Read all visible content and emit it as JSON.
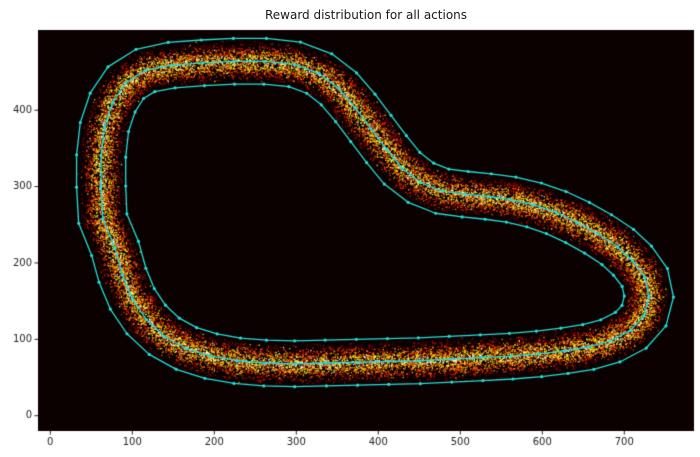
{
  "chart_data": {
    "type": "scatter",
    "title": "Reward distribution for all actions",
    "xlim": [
      -15,
      785
    ],
    "ylim": [
      -20,
      505
    ],
    "x_ticks": [
      0,
      100,
      200,
      300,
      400,
      500,
      600,
      700
    ],
    "y_ticks": [
      0,
      100,
      200,
      300,
      400
    ],
    "figure_bg": "#ffffff",
    "plot_bg": "#0b0100",
    "tick_color": "#262626",
    "grid": false,
    "track": {
      "line_color": "#1fe0d8",
      "half_width": 30,
      "marker_size": 1.6,
      "centerline": [
        [
          62,
          300
        ],
        [
          62,
          340
        ],
        [
          66,
          378
        ],
        [
          76,
          410
        ],
        [
          92,
          436
        ],
        [
          116,
          452
        ],
        [
          148,
          459
        ],
        [
          186,
          462
        ],
        [
          224,
          464
        ],
        [
          262,
          464
        ],
        [
          298,
          460
        ],
        [
          328,
          448
        ],
        [
          352,
          428
        ],
        [
          372,
          403
        ],
        [
          391,
          376
        ],
        [
          410,
          349
        ],
        [
          429,
          324
        ],
        [
          452,
          305
        ],
        [
          478,
          294
        ],
        [
          506,
          290
        ],
        [
          534,
          287
        ],
        [
          562,
          283
        ],
        [
          590,
          276
        ],
        [
          617,
          266
        ],
        [
          643,
          253
        ],
        [
          668,
          238
        ],
        [
          692,
          221
        ],
        [
          710,
          203
        ],
        [
          725,
          181
        ],
        [
          730,
          156
        ],
        [
          724,
          131
        ],
        [
          708,
          112
        ],
        [
          683,
          98
        ],
        [
          656,
          90
        ],
        [
          627,
          85
        ],
        [
          596,
          81
        ],
        [
          562,
          78
        ],
        [
          526,
          76
        ],
        [
          488,
          74
        ],
        [
          450,
          72
        ],
        [
          412,
          71
        ],
        [
          374,
          70
        ],
        [
          336,
          69
        ],
        [
          298,
          68
        ],
        [
          262,
          69
        ],
        [
          228,
          72
        ],
        [
          196,
          78
        ],
        [
          166,
          88
        ],
        [
          139,
          104
        ],
        [
          117,
          126
        ],
        [
          100,
          153
        ],
        [
          88,
          184
        ],
        [
          79,
          219
        ],
        [
          64,
          258
        ]
      ]
    },
    "scatter": {
      "count": 20000,
      "colormap": "hot",
      "point_alpha": 0.88
    }
  }
}
